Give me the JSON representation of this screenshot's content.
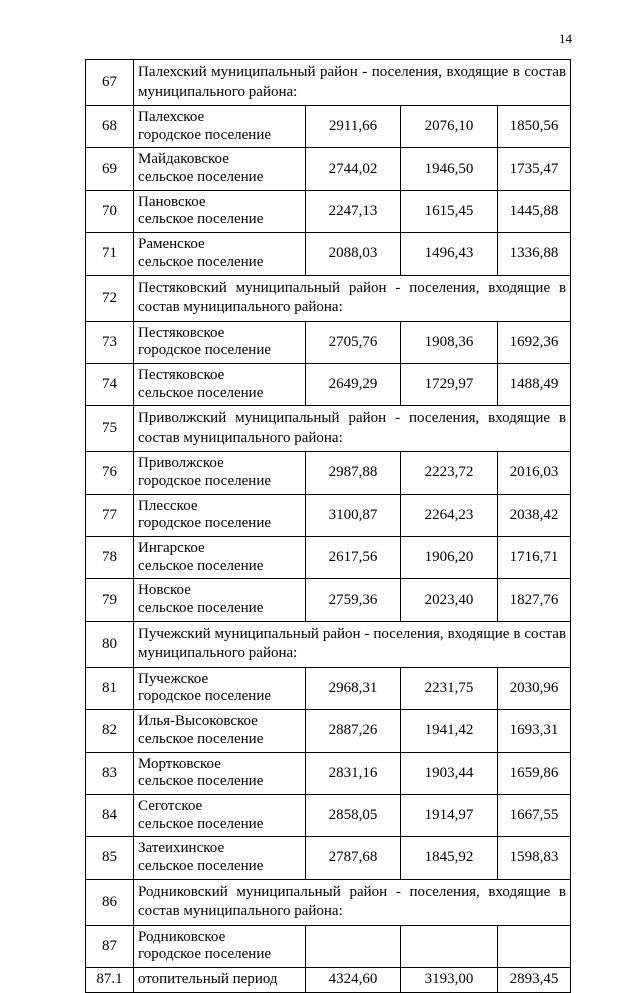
{
  "page": {
    "number": "14"
  },
  "table": {
    "rows": [
      {
        "type": "section",
        "num": "67",
        "text": "Палехский муниципальный район - поселения, входящие в состав муниципального района:"
      },
      {
        "type": "data",
        "num": "68",
        "name": [
          "Палехское",
          "городское поселение"
        ],
        "values": [
          "2911,66",
          "2076,10",
          "1850,56"
        ]
      },
      {
        "type": "data",
        "num": "69",
        "name": [
          "Майдаковское",
          "сельское поселение"
        ],
        "values": [
          "2744,02",
          "1946,50",
          "1735,47"
        ]
      },
      {
        "type": "data",
        "num": "70",
        "name": [
          "Пановское",
          "сельское поселение"
        ],
        "values": [
          "2247,13",
          "1615,45",
          "1445,88"
        ]
      },
      {
        "type": "data",
        "num": "71",
        "name": [
          "Раменское",
          "сельское поселение"
        ],
        "values": [
          "2088,03",
          "1496,43",
          "1336,88"
        ]
      },
      {
        "type": "section",
        "num": "72",
        "text": "Пестяковский муниципальный район - поселения, входящие в состав муниципального района:"
      },
      {
        "type": "data",
        "num": "73",
        "name": [
          "Пестяковское",
          "городское поселение"
        ],
        "values": [
          "2705,76",
          "1908,36",
          "1692,36"
        ]
      },
      {
        "type": "data",
        "num": "74",
        "name": [
          "Пестяковское",
          "сельское поселение"
        ],
        "values": [
          "2649,29",
          "1729,97",
          "1488,49"
        ]
      },
      {
        "type": "section",
        "num": "75",
        "text": "Приволжский муниципальный район - поселения, входящие в состав муниципального района:"
      },
      {
        "type": "data",
        "num": "76",
        "name": [
          "Приволжское",
          "городское поселение"
        ],
        "values": [
          "2987,88",
          "2223,72",
          "2016,03"
        ]
      },
      {
        "type": "data",
        "num": "77",
        "name": [
          "Плесское",
          "городское поселение"
        ],
        "values": [
          "3100,87",
          "2264,23",
          "2038,42"
        ]
      },
      {
        "type": "data",
        "num": "78",
        "name": [
          "Ингарское",
          "сельское поселение"
        ],
        "values": [
          "2617,56",
          "1906,20",
          "1716,71"
        ]
      },
      {
        "type": "data",
        "num": "79",
        "name": [
          "Новское",
          "сельское поселение"
        ],
        "values": [
          "2759,36",
          "2023,40",
          "1827,76"
        ]
      },
      {
        "type": "section",
        "num": "80",
        "text": "Пучежский муниципальный район - поселения, входящие в состав муниципального района:"
      },
      {
        "type": "data",
        "num": "81",
        "name": [
          "Пучежское",
          "городское поселение"
        ],
        "values": [
          "2968,31",
          "2231,75",
          "2030,96"
        ]
      },
      {
        "type": "data",
        "num": "82",
        "name": [
          "Илья-Высоковское",
          "сельское поселение"
        ],
        "values": [
          "2887,26",
          "1941,42",
          "1693,31"
        ]
      },
      {
        "type": "data",
        "num": "83",
        "name": [
          "Мортковское",
          "сельское поселение"
        ],
        "values": [
          "2831,16",
          "1903,44",
          "1659,86"
        ]
      },
      {
        "type": "data",
        "num": "84",
        "name": [
          "Сеготское",
          "сельское поселение"
        ],
        "values": [
          "2858,05",
          "1914,97",
          "1667,55"
        ]
      },
      {
        "type": "data",
        "num": "85",
        "name": [
          "Затеихинское",
          "сельское поселение"
        ],
        "values": [
          "2787,68",
          "1845,92",
          "1598,83"
        ]
      },
      {
        "type": "section",
        "num": "86",
        "text": "Родниковский муниципальный район - поселения, входящие в состав муниципального района:"
      },
      {
        "type": "data",
        "num": "87",
        "name": [
          "Родниковское",
          "городское поселение"
        ],
        "values": [
          "",
          "",
          ""
        ]
      },
      {
        "type": "data",
        "num": "87.1",
        "name": [
          "отопительный период"
        ],
        "values": [
          "4324,60",
          "3193,00",
          "2893,45"
        ]
      }
    ]
  }
}
